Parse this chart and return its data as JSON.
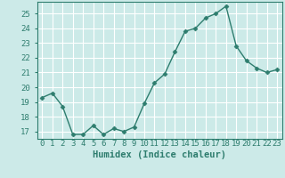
{
  "x": [
    0,
    1,
    2,
    3,
    4,
    5,
    6,
    7,
    8,
    9,
    10,
    11,
    12,
    13,
    14,
    15,
    16,
    17,
    18,
    19,
    20,
    21,
    22,
    23
  ],
  "y": [
    19.3,
    19.6,
    18.7,
    16.8,
    16.8,
    17.4,
    16.8,
    17.2,
    17.0,
    17.3,
    18.9,
    20.3,
    20.9,
    22.4,
    23.8,
    24.0,
    24.7,
    25.0,
    25.5,
    22.8,
    21.8,
    21.3,
    21.0,
    21.2
  ],
  "line_color": "#2e7d6e",
  "marker": "D",
  "markersize": 2.5,
  "linewidth": 1.0,
  "xlabel": "Humidex (Indice chaleur)",
  "ylim": [
    16.5,
    25.8
  ],
  "yticks": [
    17,
    18,
    19,
    20,
    21,
    22,
    23,
    24,
    25
  ],
  "xtick_labels": [
    "0",
    "1",
    "2",
    "3",
    "4",
    "5",
    "6",
    "7",
    "8",
    "9",
    "10",
    "11",
    "12",
    "13",
    "14",
    "15",
    "16",
    "17",
    "18",
    "19",
    "20",
    "21",
    "22",
    "23"
  ],
  "background_color": "#cceae8",
  "grid_color": "#ffffff",
  "xlabel_fontsize": 7.5,
  "tick_fontsize": 6.5,
  "tick_color": "#2e7d6e",
  "spine_color": "#2e7d6e"
}
